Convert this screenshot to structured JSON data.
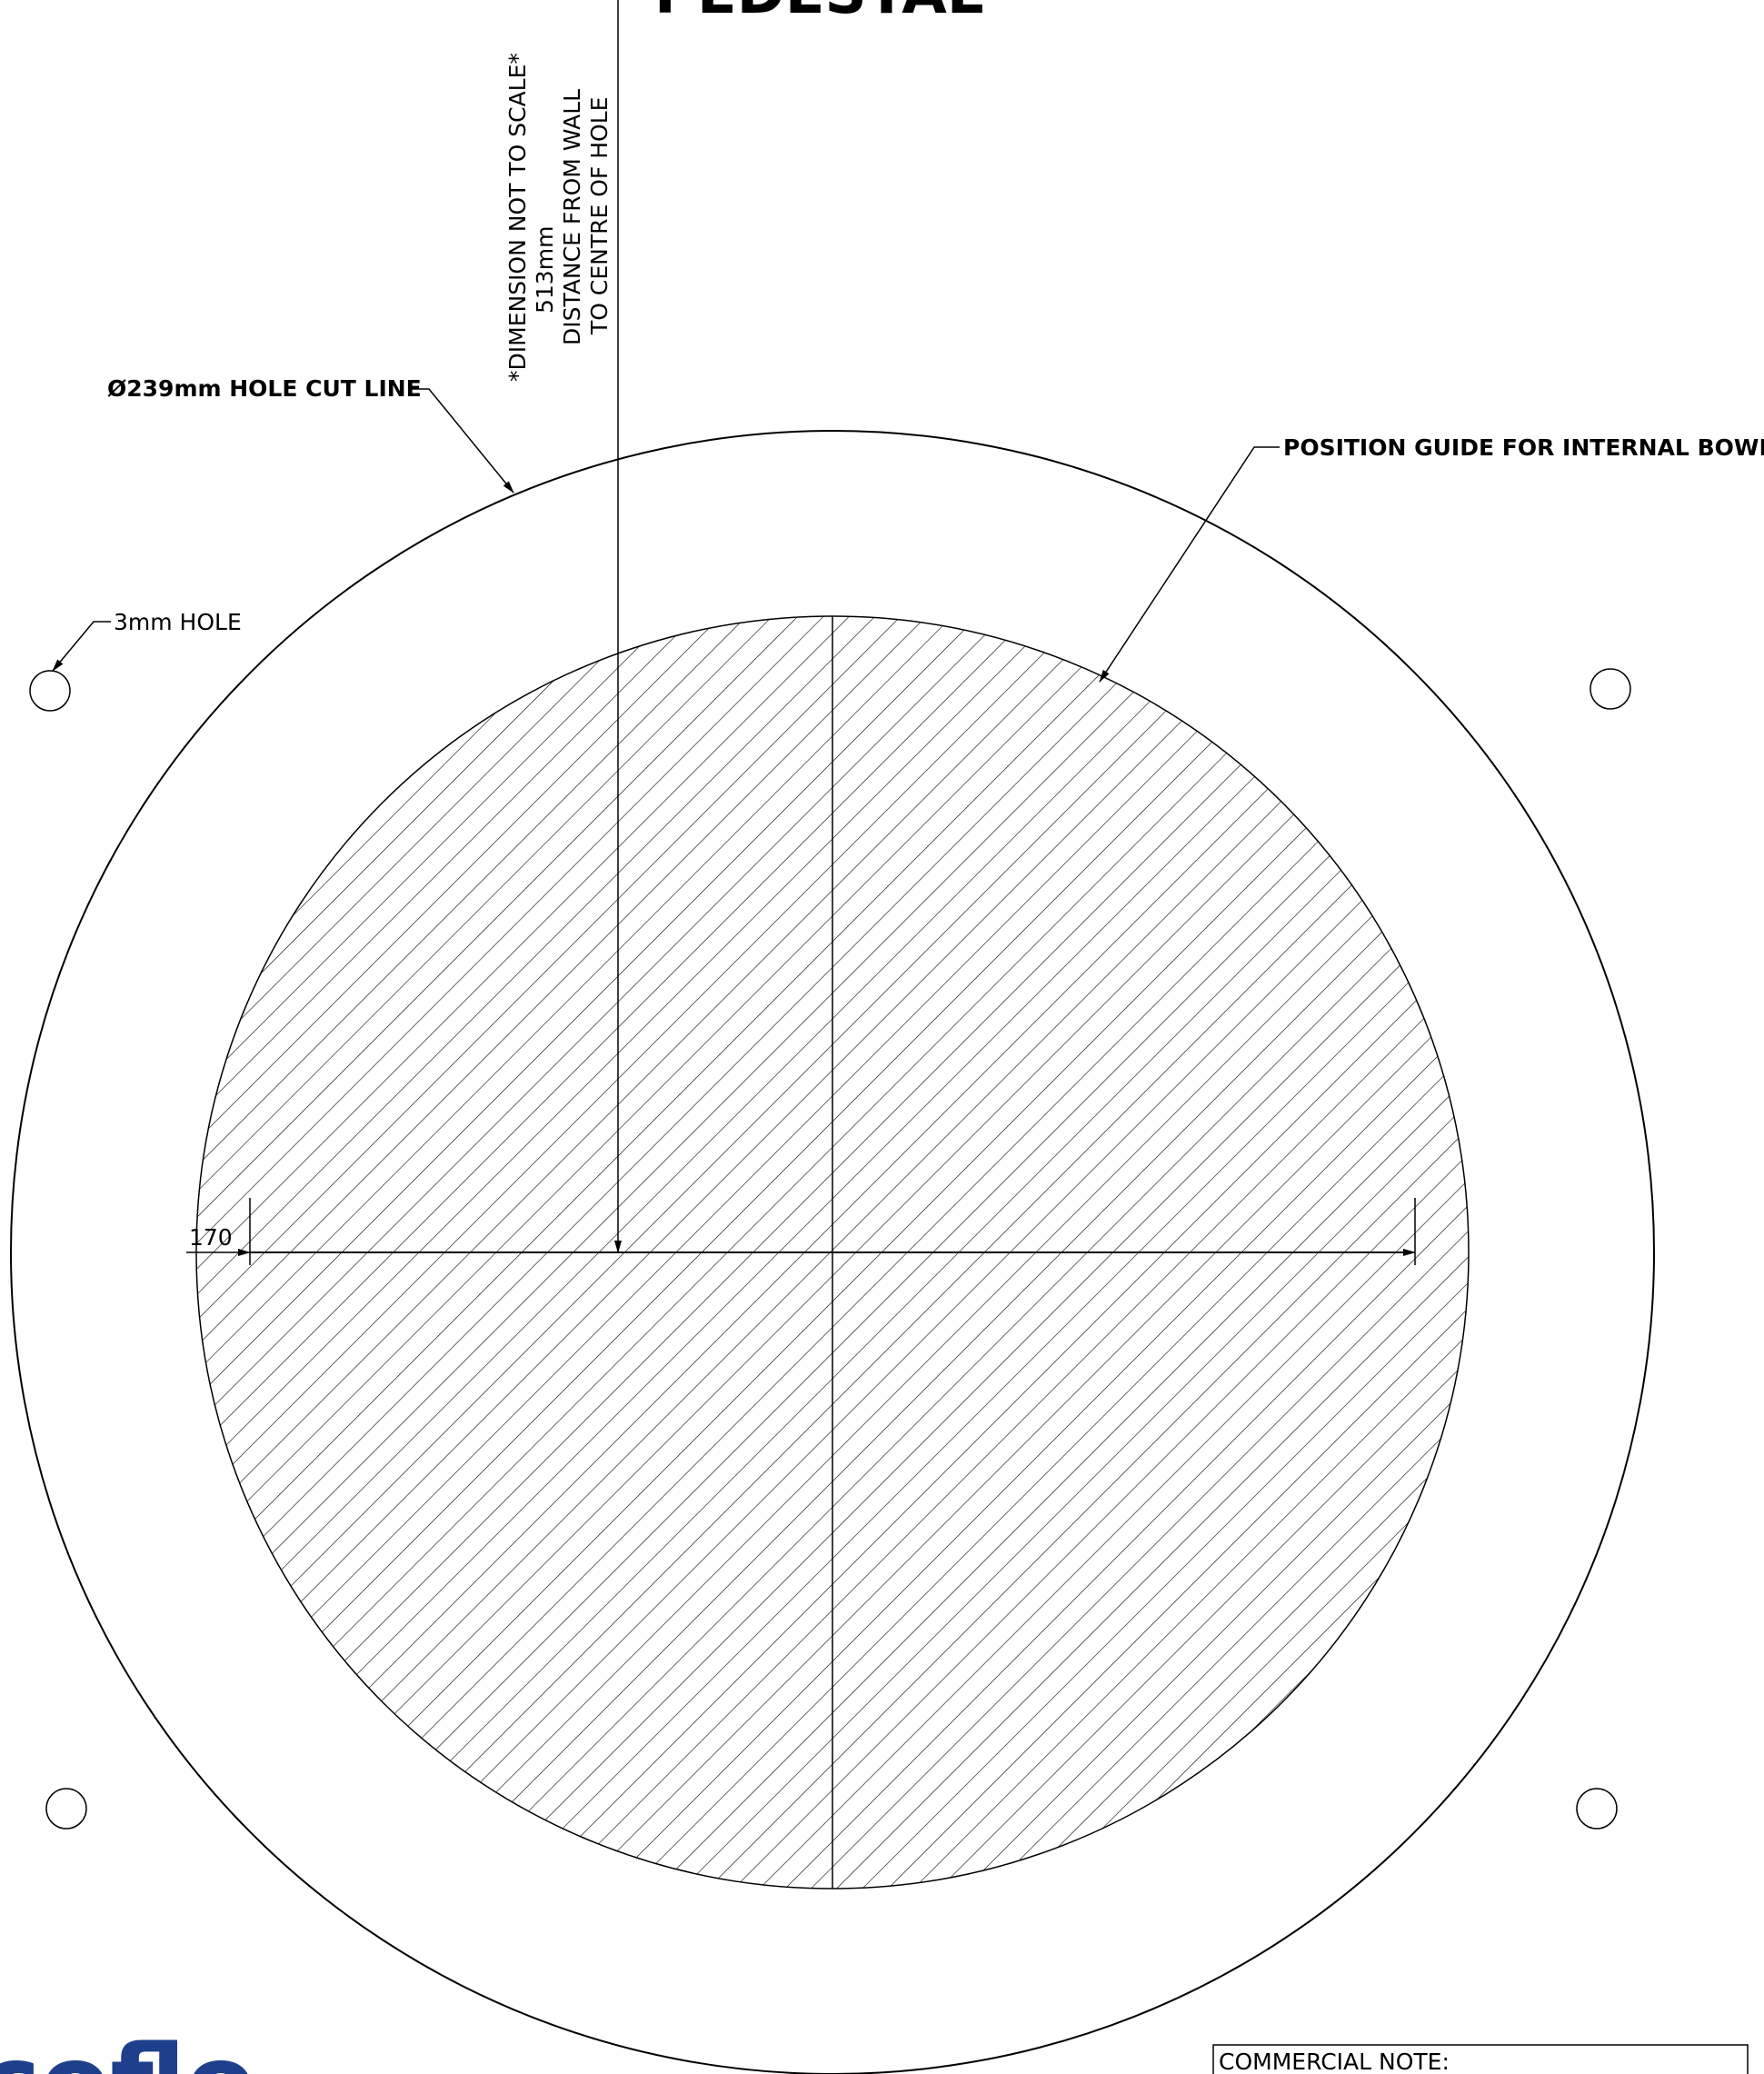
{
  "drawing": {
    "title": "PEDESTAL",
    "labels": {
      "hole_cut_line": "Ø239mm HOLE CUT LINE",
      "position_guide": "POSITION GUIDE FOR INTERNAL BOWL",
      "small_hole": "3mm HOLE",
      "width_dim": "170",
      "dim_note_1": "*DIMENSION NOT TO SCALE*",
      "dim_note_2": "513mm",
      "dim_note_3": "DISTANCE FROM WALL",
      "dim_note_4": "TO CENTRE OF HOLE"
    },
    "commercial_note": "COMMERCIAL NOTE:",
    "logo_text": "coflo",
    "colors": {
      "line": "#000000",
      "logo": "#1d3f8c"
    }
  }
}
